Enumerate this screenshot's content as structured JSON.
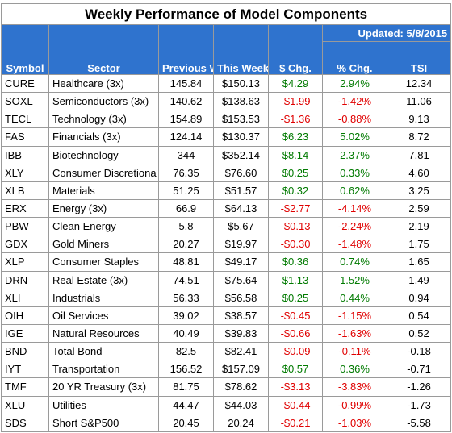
{
  "title": "Weekly Performance of Model Components",
  "updated": "Updated:  5/8/2015",
  "columns": {
    "symbol": "Symbol",
    "sector": "Sector",
    "prev_close": "Previous Week Close",
    "this_close": "This Week Close",
    "dollar_chg": "$ Chg.",
    "pct_chg": "% Chg.",
    "tsi": "TSI"
  },
  "colors": {
    "header_bg": "#2f73ce",
    "positive": "#007a00",
    "negative": "#e00000"
  },
  "rows": [
    {
      "symbol": "CURE",
      "sector": "Healthcare  (3x)",
      "prev": "145.84",
      "this": "$150.13",
      "dchg": "$4.29",
      "pchg": "2.94%",
      "tsi": "12.34"
    },
    {
      "symbol": "SOXL",
      "sector": "Semiconductors  (3x)",
      "prev": "140.62",
      "this": "$138.63",
      "dchg": "-$1.99",
      "pchg": "-1.42%",
      "tsi": "11.06"
    },
    {
      "symbol": "TECL",
      "sector": "Technology  (3x)",
      "prev": "154.89",
      "this": "$153.53",
      "dchg": "-$1.36",
      "pchg": "-0.88%",
      "tsi": "9.13"
    },
    {
      "symbol": "FAS",
      "sector": "Financials  (3x)",
      "prev": "124.14",
      "this": "$130.37",
      "dchg": "$6.23",
      "pchg": "5.02%",
      "tsi": "8.72"
    },
    {
      "symbol": "IBB",
      "sector": "Biotechnology",
      "prev": "344",
      "this": "$352.14",
      "dchg": "$8.14",
      "pchg": "2.37%",
      "tsi": "7.81"
    },
    {
      "symbol": "XLY",
      "sector": "Consumer Discretiona",
      "prev": "76.35",
      "this": "$76.60",
      "dchg": "$0.25",
      "pchg": "0.33%",
      "tsi": "4.60"
    },
    {
      "symbol": "XLB",
      "sector": "Materials",
      "prev": "51.25",
      "this": "$51.57",
      "dchg": "$0.32",
      "pchg": "0.62%",
      "tsi": "3.25"
    },
    {
      "symbol": "ERX",
      "sector": "Energy  (3x)",
      "prev": "66.9",
      "this": "$64.13",
      "dchg": "-$2.77",
      "pchg": "-4.14%",
      "tsi": "2.59"
    },
    {
      "symbol": "PBW",
      "sector": "Clean Energy",
      "prev": "5.8",
      "this": "$5.67",
      "dchg": "-$0.13",
      "pchg": "-2.24%",
      "tsi": "2.19"
    },
    {
      "symbol": "GDX",
      "sector": "Gold Miners",
      "prev": "20.27",
      "this": "$19.97",
      "dchg": "-$0.30",
      "pchg": "-1.48%",
      "tsi": "1.75"
    },
    {
      "symbol": "XLP",
      "sector": "Consumer Staples",
      "prev": "48.81",
      "this": "$49.17",
      "dchg": "$0.36",
      "pchg": "0.74%",
      "tsi": "1.65"
    },
    {
      "symbol": "DRN",
      "sector": "Real Estate  (3x)",
      "prev": "74.51",
      "this": "$75.64",
      "dchg": "$1.13",
      "pchg": "1.52%",
      "tsi": "1.49"
    },
    {
      "symbol": "XLI",
      "sector": "Industrials",
      "prev": "56.33",
      "this": "$56.58",
      "dchg": "$0.25",
      "pchg": "0.44%",
      "tsi": "0.94"
    },
    {
      "symbol": "OIH",
      "sector": "Oil Services",
      "prev": "39.02",
      "this": "$38.57",
      "dchg": "-$0.45",
      "pchg": "-1.15%",
      "tsi": "0.54"
    },
    {
      "symbol": "IGE",
      "sector": "Natural Resources",
      "prev": "40.49",
      "this": "$39.83",
      "dchg": "-$0.66",
      "pchg": "-1.63%",
      "tsi": "0.52"
    },
    {
      "symbol": "BND",
      "sector": "Total Bond",
      "prev": "82.5",
      "this": "$82.41",
      "dchg": "-$0.09",
      "pchg": "-0.11%",
      "tsi": "-0.18"
    },
    {
      "symbol": "IYT",
      "sector": "Transportation",
      "prev": "156.52",
      "this": "$157.09",
      "dchg": "$0.57",
      "pchg": "0.36%",
      "tsi": "-0.71"
    },
    {
      "symbol": "TMF",
      "sector": "20 YR Treasury  (3x)",
      "prev": "81.75",
      "this": "$78.62",
      "dchg": "-$3.13",
      "pchg": "-3.83%",
      "tsi": "-1.26"
    },
    {
      "symbol": "XLU",
      "sector": "Utilities",
      "prev": "44.47",
      "this": "$44.03",
      "dchg": "-$0.44",
      "pchg": "-0.99%",
      "tsi": "-1.73"
    },
    {
      "symbol": "SDS",
      "sector": "Short S&P500",
      "prev": "20.45",
      "this": "20.24",
      "dchg": "-$0.21",
      "pchg": "-1.03%",
      "tsi": "-5.58"
    }
  ]
}
